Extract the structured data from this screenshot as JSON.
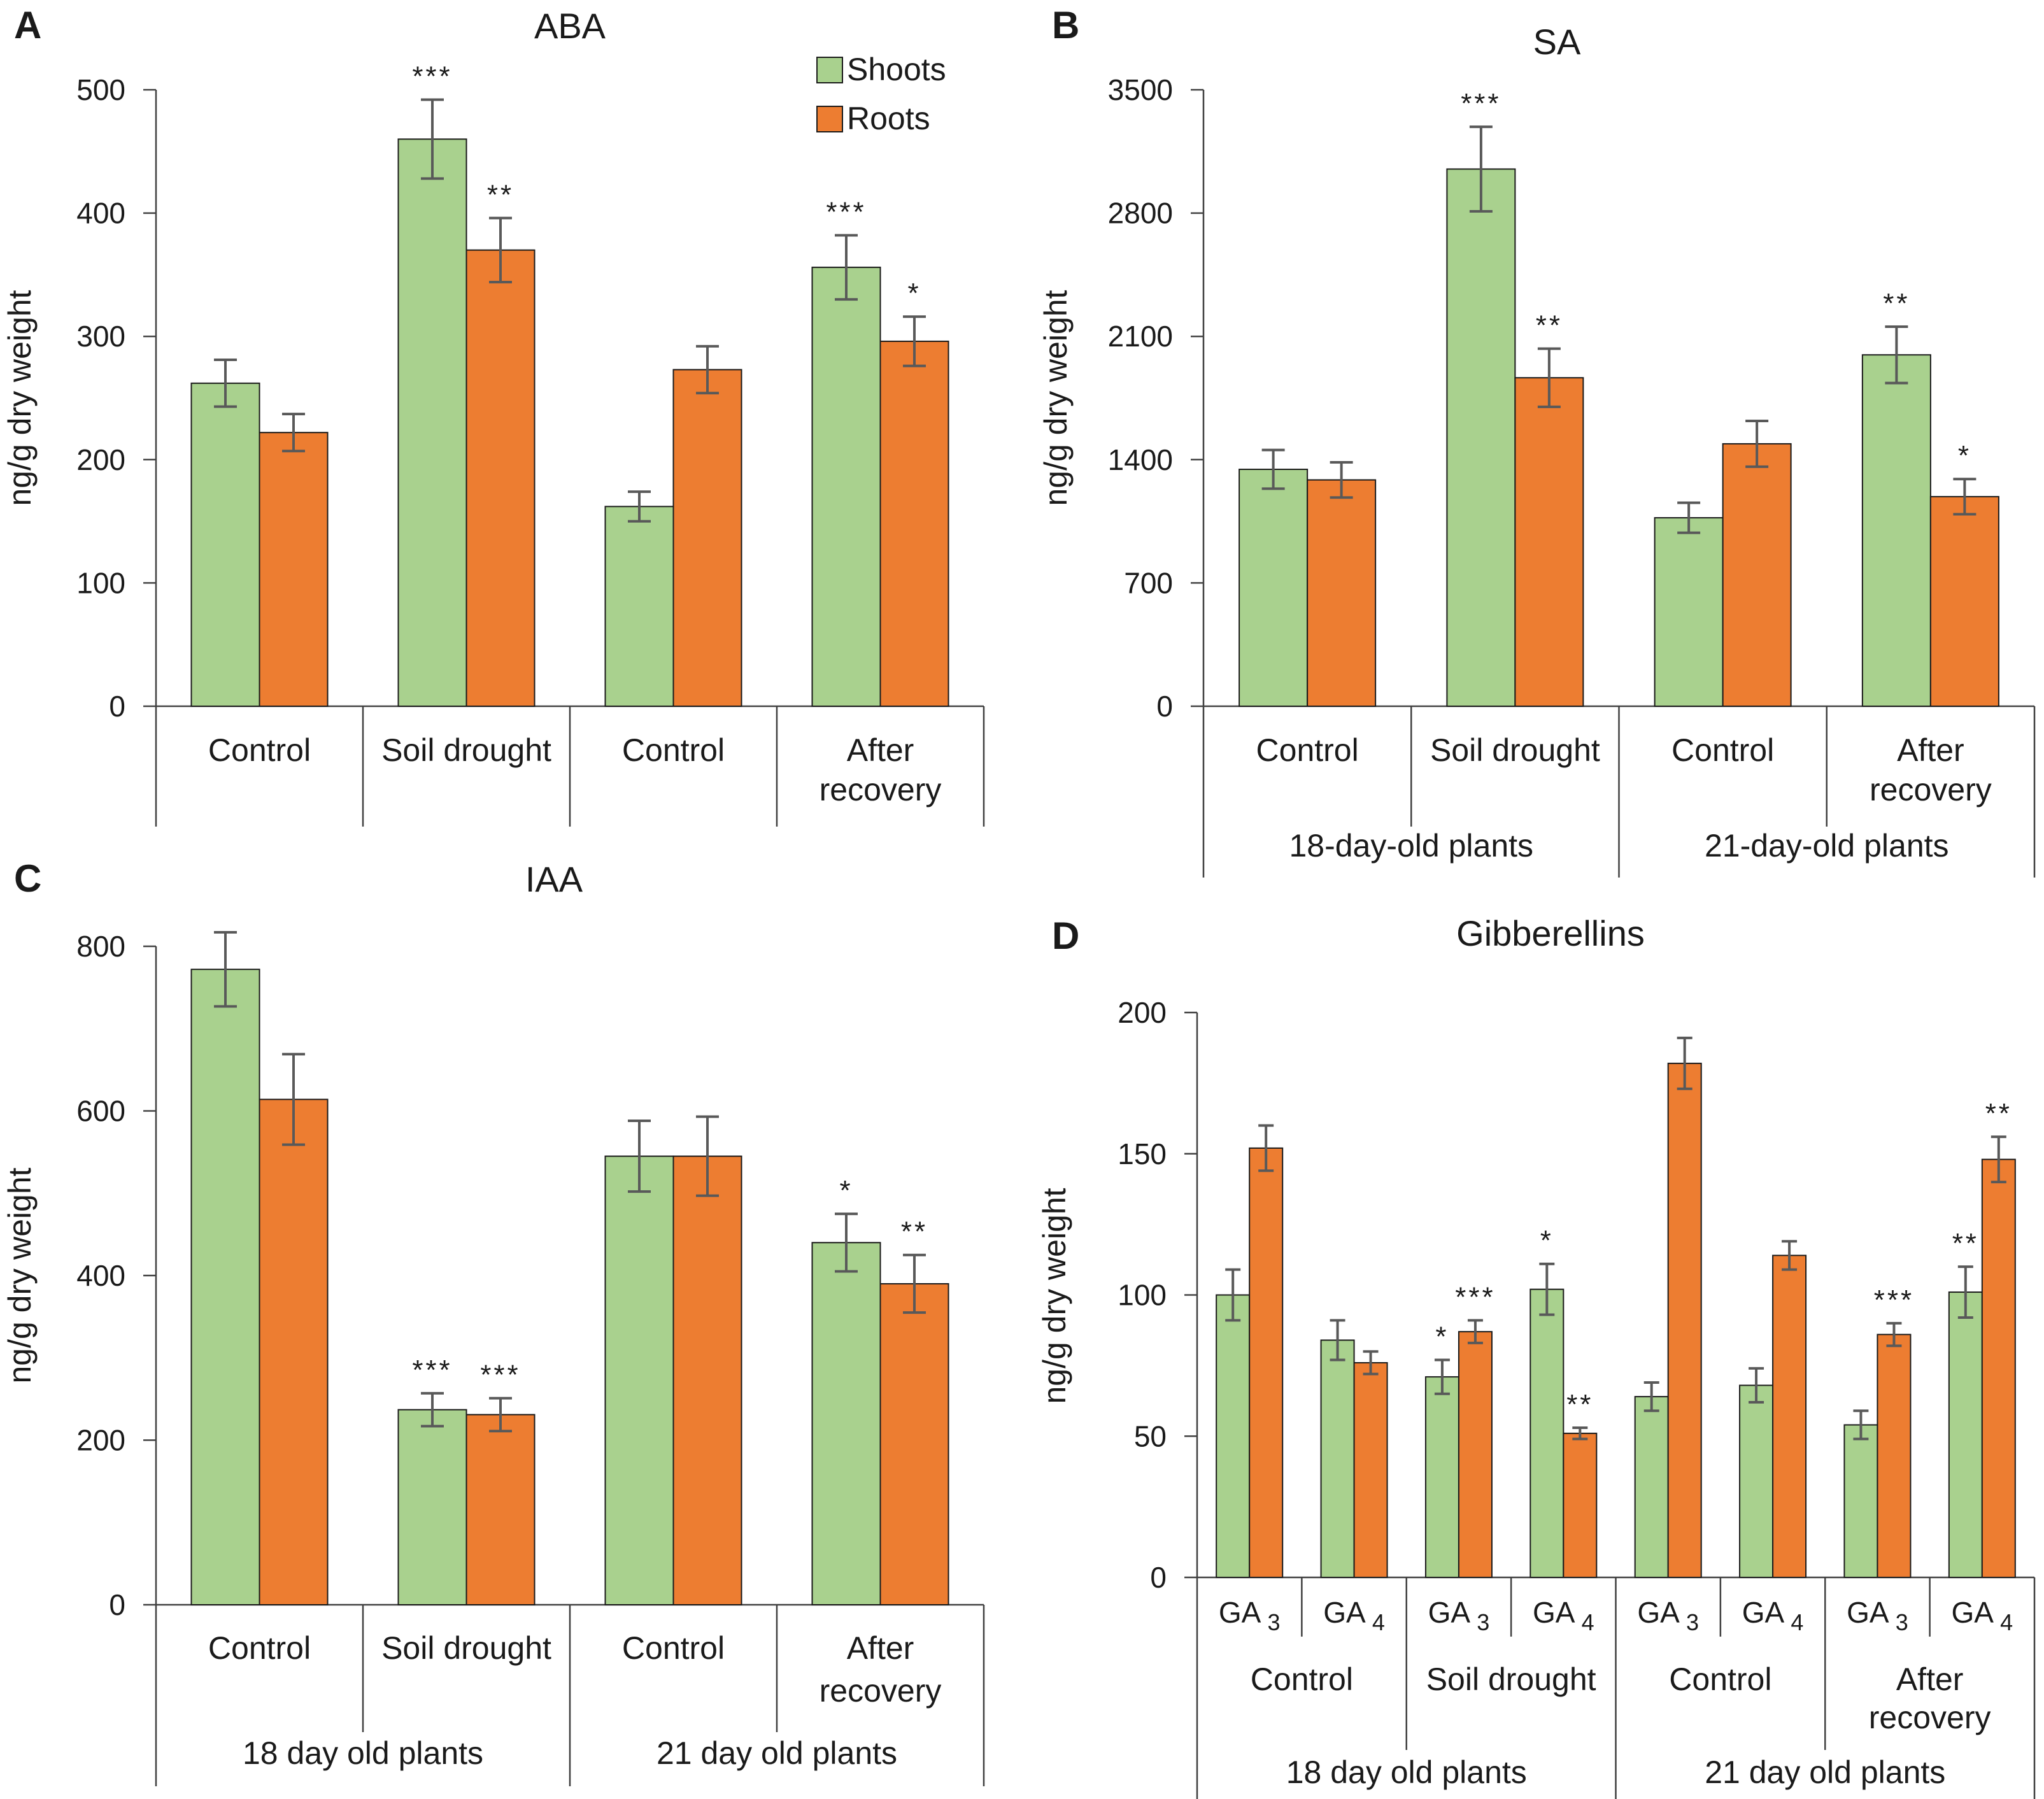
{
  "figure": {
    "legend": {
      "entries": [
        {
          "label": "Shoots",
          "color": "#a9d18e"
        },
        {
          "label": "Roots",
          "color": "#ed7d31"
        }
      ]
    }
  },
  "chart_data": [
    {
      "id": "A",
      "type": "bar",
      "panel": "A",
      "title": "ABA",
      "ylabel": "ng/g dry weight",
      "ylim": [
        0,
        500
      ],
      "yticks": [
        0,
        100,
        200,
        300,
        400,
        500
      ],
      "categories": [
        "Control",
        "Soil drought",
        "Control",
        "After recovery"
      ],
      "category_lines": [
        [
          "Control"
        ],
        [
          "Soil drought"
        ],
        [
          "Control"
        ],
        [
          "After",
          "recovery"
        ]
      ],
      "groups": [],
      "series": [
        {
          "name": "Shoots",
          "values": [
            262,
            460,
            162,
            356
          ],
          "errors": [
            19,
            32,
            12,
            26
          ],
          "stars": [
            "",
            "***",
            "",
            "***"
          ]
        },
        {
          "name": "Roots",
          "values": [
            222,
            370,
            273,
            296
          ],
          "errors": [
            15,
            26,
            19,
            20
          ],
          "stars": [
            "",
            "**",
            "",
            "*"
          ]
        }
      ]
    },
    {
      "id": "B",
      "type": "bar",
      "panel": "B",
      "title": "SA",
      "ylabel": "ng/g dry weight",
      "ylim": [
        0,
        3500
      ],
      "yticks": [
        0,
        700,
        1400,
        2100,
        2800,
        3500
      ],
      "categories": [
        "Control",
        "Soil drought",
        "Control",
        "After recovery"
      ],
      "category_lines": [
        [
          "Control"
        ],
        [
          "Soil drought"
        ],
        [
          "Control"
        ],
        [
          "After",
          "recovery"
        ]
      ],
      "groups": [
        "18-day-old plants",
        "21-day-old plants"
      ],
      "series": [
        {
          "name": "Shoots",
          "values": [
            1345,
            3050,
            1070,
            1995
          ],
          "errors": [
            110,
            240,
            85,
            160
          ],
          "stars": [
            "",
            "***",
            "",
            "**"
          ]
        },
        {
          "name": "Roots",
          "values": [
            1285,
            1865,
            1490,
            1190
          ],
          "errors": [
            100,
            165,
            130,
            100
          ],
          "stars": [
            "",
            "**",
            "",
            "*"
          ]
        }
      ]
    },
    {
      "id": "C",
      "type": "bar",
      "panel": "C",
      "title": "IAA",
      "ylabel": "ng/g dry weight",
      "ylim": [
        0,
        800
      ],
      "yticks": [
        0,
        200,
        400,
        600,
        800
      ],
      "categories": [
        "Control",
        "Soil drought",
        "Control",
        "After recovery"
      ],
      "category_lines": [
        [
          "Control"
        ],
        [
          "Soil drought"
        ],
        [
          "Control"
        ],
        [
          "After",
          "recovery"
        ]
      ],
      "groups": [
        "18 day old plants",
        "21 day old plants"
      ],
      "series": [
        {
          "name": "Shoots",
          "values": [
            772,
            237,
            545,
            440
          ],
          "errors": [
            45,
            20,
            43,
            35
          ],
          "stars": [
            "",
            "***",
            "",
            "*"
          ]
        },
        {
          "name": "Roots",
          "values": [
            614,
            231,
            545,
            390
          ],
          "errors": [
            55,
            20,
            48,
            35
          ],
          "stars": [
            "",
            "***",
            "",
            "**"
          ]
        }
      ]
    },
    {
      "id": "D",
      "type": "bar",
      "panel": "D",
      "title": "Gibberellins",
      "ylabel": "ng/g dry weight",
      "ylim": [
        0,
        200
      ],
      "yticks": [
        0,
        50,
        100,
        150,
        200
      ],
      "categories": [
        "GA3",
        "GA4",
        "GA3",
        "GA4",
        "GA3",
        "GA4",
        "GA3",
        "GA4"
      ],
      "subcategories": [
        {
          "base": "GA",
          "sub": "3"
        },
        {
          "base": "GA",
          "sub": "4"
        },
        {
          "base": "GA",
          "sub": "3"
        },
        {
          "base": "GA",
          "sub": "4"
        },
        {
          "base": "GA",
          "sub": "3"
        },
        {
          "base": "GA",
          "sub": "4"
        },
        {
          "base": "GA",
          "sub": "3"
        },
        {
          "base": "GA",
          "sub": "4"
        }
      ],
      "category_lines": [
        [
          "Control"
        ],
        [
          "Soil drought"
        ],
        [
          "Control"
        ],
        [
          "After",
          "recovery"
        ]
      ],
      "groups": [
        "18 day old plants",
        "21 day old plants"
      ],
      "series": [
        {
          "name": "Shoots",
          "values": [
            100,
            84,
            71,
            102,
            64,
            68,
            54,
            101
          ],
          "errors": [
            9,
            7,
            6,
            9,
            5,
            6,
            5,
            9
          ],
          "stars": [
            "",
            "",
            "*",
            "*",
            "",
            "",
            "",
            "**"
          ]
        },
        {
          "name": "Roots",
          "values": [
            152,
            76,
            87,
            51,
            182,
            114,
            86,
            148
          ],
          "errors": [
            8,
            4,
            4,
            2,
            9,
            5,
            4,
            8
          ],
          "stars": [
            "",
            "",
            "***",
            "**",
            "",
            "",
            "***",
            "**"
          ]
        }
      ]
    }
  ]
}
